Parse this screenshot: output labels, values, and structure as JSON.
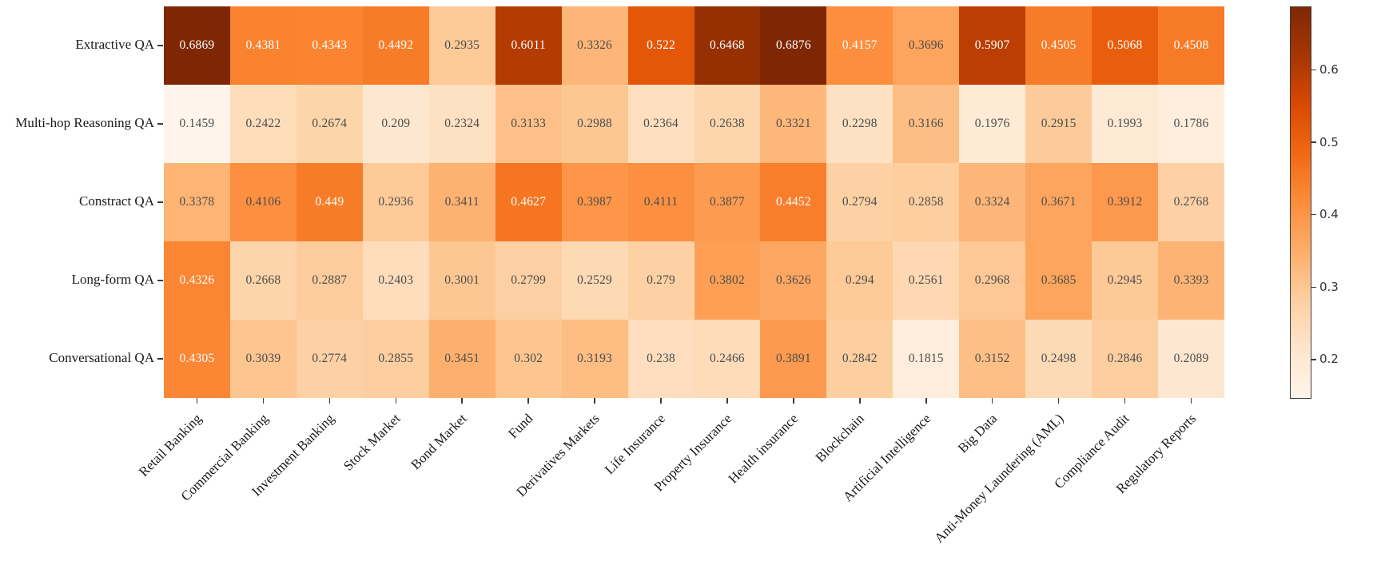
{
  "chart_data": {
    "type": "heatmap",
    "title": "",
    "xlabel": "",
    "ylabel": "",
    "rows": [
      "Extractive QA",
      "Multi-hop Reasoning QA",
      "Constract QA",
      "Long-form QA",
      "Conversational QA"
    ],
    "columns": [
      "Retail Banking",
      "Commercial Banking",
      "Investment Banking",
      "Stock Market",
      "Bond Market",
      "Fund",
      "Derivatives Markets",
      "Life Insurance",
      "Property Insurance",
      "Health insurance",
      "Blockchain",
      "Artificial Intelligence",
      "Big Data",
      "Anti-Money Laundering (AML)",
      "Compliance Audit",
      "Regulatory Reports"
    ],
    "values": [
      [
        0.6869,
        0.4381,
        0.4343,
        0.4492,
        0.2935,
        0.6011,
        0.3326,
        0.522,
        0.6468,
        0.6876,
        0.4157,
        0.3696,
        0.5907,
        0.4505,
        0.5068,
        0.4508
      ],
      [
        0.1459,
        0.2422,
        0.2674,
        0.209,
        0.2324,
        0.3133,
        0.2988,
        0.2364,
        0.2638,
        0.3321,
        0.2298,
        0.3166,
        0.1976,
        0.2915,
        0.1993,
        0.1786
      ],
      [
        0.3378,
        0.4106,
        0.449,
        0.2936,
        0.3411,
        0.4627,
        0.3987,
        0.4111,
        0.3877,
        0.4452,
        0.2794,
        0.2858,
        0.3324,
        0.3671,
        0.3912,
        0.2768
      ],
      [
        0.4326,
        0.2668,
        0.2887,
        0.2403,
        0.3001,
        0.2799,
        0.2529,
        0.279,
        0.3802,
        0.3626,
        0.294,
        0.2561,
        0.2968,
        0.3685,
        0.2945,
        0.3393
      ],
      [
        0.4305,
        0.3039,
        0.2774,
        0.2855,
        0.3451,
        0.302,
        0.3193,
        0.238,
        0.2466,
        0.3891,
        0.2842,
        0.1815,
        0.3152,
        0.2498,
        0.2846,
        0.2089
      ]
    ],
    "vmin": 0.1459,
    "vmax": 0.6876,
    "colorbar_ticks": [
      0.2,
      0.3,
      0.4,
      0.5,
      0.6
    ],
    "legend_position": "right",
    "grid": false,
    "colormap": {
      "name": "Oranges",
      "anchors": [
        "#fff5eb",
        "#fee6ce",
        "#fdd0a2",
        "#fdae6b",
        "#fd8d3c",
        "#f16913",
        "#d94801",
        "#a63603",
        "#7f2704"
      ]
    },
    "colors": {
      "axis": "#3b3b3b",
      "annot_dark": "#4d4d4d",
      "annot_light": "#ffffff"
    }
  }
}
